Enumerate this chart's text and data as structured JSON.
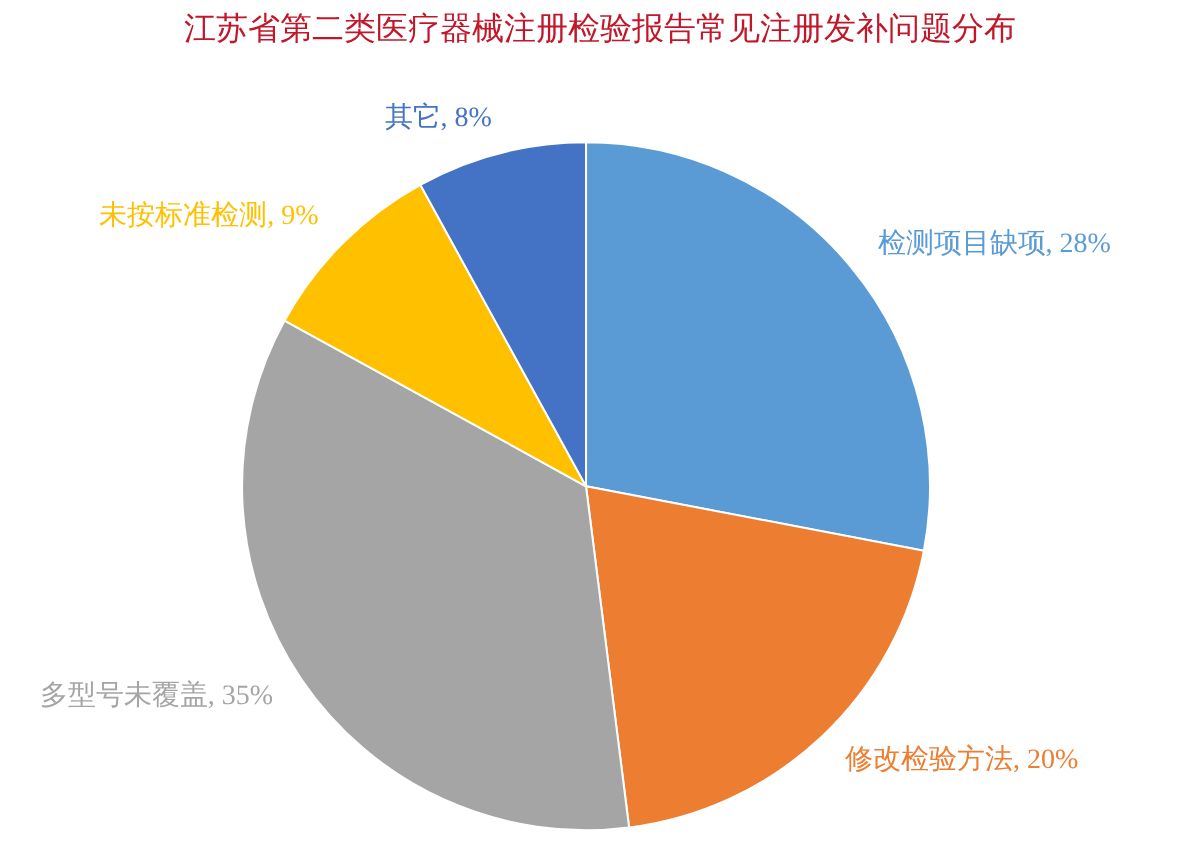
{
  "chart_data": {
    "type": "pie",
    "title": "江苏省第二类医疗器械注册检验报告常见注册发补问题分布",
    "categories": [
      "检测项目缺项",
      "修改检验方法",
      "多型号未覆盖",
      "未按标准检测",
      "其它"
    ],
    "values": [
      28,
      20,
      35,
      9,
      8
    ],
    "colors": [
      "#5b9bd5",
      "#ed7d31",
      "#a5a5a5",
      "#ffc000",
      "#4472c4"
    ],
    "value_labels": [
      "28%",
      "20%",
      "35%",
      "9%",
      "8%"
    ]
  }
}
